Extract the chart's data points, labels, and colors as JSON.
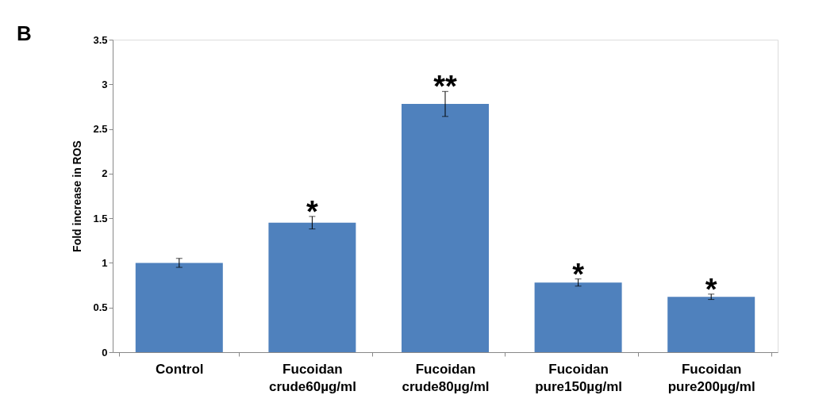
{
  "chart_data": {
    "type": "bar",
    "title": "B",
    "ylabel": "Fold  increase in ROS",
    "categories": [
      "Control",
      "Fucoidan crude60µg/ml",
      "Fucoidan crude80µg/ml",
      "Fucoidan pure150µg/ml",
      "Fucoidan pure200µg/ml"
    ],
    "values": [
      1.0,
      1.45,
      2.78,
      0.78,
      0.62
    ],
    "errors": [
      0.05,
      0.07,
      0.14,
      0.04,
      0.03
    ],
    "color": "#4f81bd",
    "ylim": [
      0,
      3.5
    ],
    "yticks": [
      0,
      0.5,
      1,
      1.5,
      2,
      2.5,
      3,
      3.5
    ],
    "grid": false,
    "annotations": [
      {
        "text": "*",
        "x": "Fucoidan crude60µg/ml",
        "y": 1.52
      },
      {
        "text": "**",
        "x": "Fucoidan crude80µg/ml",
        "y": 2.92
      },
      {
        "text": "*",
        "x": "Fucoidan pure150µg/ml",
        "y": 0.82
      },
      {
        "text": "*",
        "x": "Fucoidan pure200µg/ml",
        "y": 0.65
      }
    ]
  }
}
